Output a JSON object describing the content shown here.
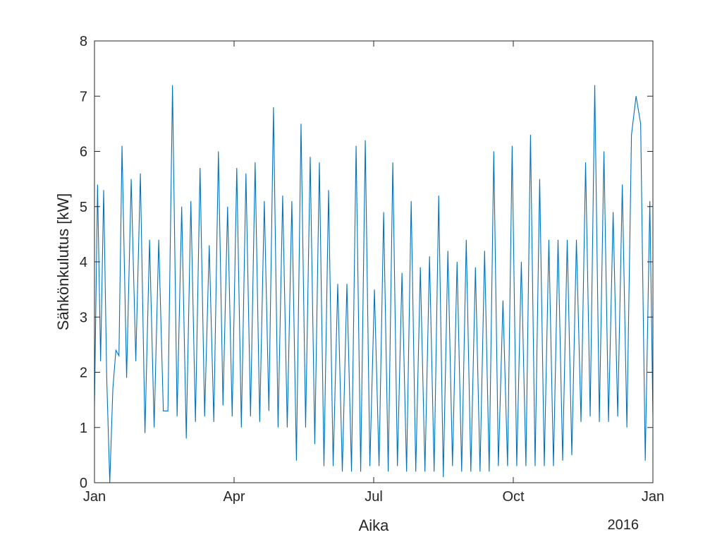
{
  "chart_data": {
    "type": "line",
    "title": "",
    "xlabel": "Aika",
    "ylabel": "Sähkönkulutus [kW]",
    "x_tick_labels": [
      "Jan",
      "Apr",
      "Jul",
      "Oct",
      "Jan"
    ],
    "x_secondary_label": "2016",
    "y_tick_labels": [
      "0",
      "1",
      "2",
      "3",
      "4",
      "5",
      "6",
      "7",
      "8"
    ],
    "xlim": [
      "2015-01-01",
      "2016-01-01"
    ],
    "ylim": [
      0,
      8
    ],
    "grid": false,
    "line_color": "#0072BD",
    "series": [
      {
        "name": "",
        "x": [
          "2015-01-01",
          "2015-01-03",
          "2015-01-05",
          "2015-01-07",
          "2015-01-09",
          "2015-01-11",
          "2015-01-13",
          "2015-01-15",
          "2015-01-17",
          "2015-01-19",
          "2015-01-22",
          "2015-01-25",
          "2015-01-28",
          "2015-01-31",
          "2015-02-03",
          "2015-02-06",
          "2015-02-09",
          "2015-02-12",
          "2015-02-15",
          "2015-02-18",
          "2015-02-21",
          "2015-02-24",
          "2015-02-27",
          "2015-03-02",
          "2015-03-05",
          "2015-03-08",
          "2015-03-11",
          "2015-03-14",
          "2015-03-17",
          "2015-03-20",
          "2015-03-23",
          "2015-03-26",
          "2015-03-29",
          "2015-04-01",
          "2015-04-04",
          "2015-04-07",
          "2015-04-10",
          "2015-04-13",
          "2015-04-16",
          "2015-04-19",
          "2015-04-22",
          "2015-04-25",
          "2015-04-28",
          "2015-05-01",
          "2015-05-04",
          "2015-05-07",
          "2015-05-10",
          "2015-05-13",
          "2015-05-16",
          "2015-05-19",
          "2015-05-22",
          "2015-05-25",
          "2015-05-28",
          "2015-05-31",
          "2015-06-03",
          "2015-06-06",
          "2015-06-09",
          "2015-06-12",
          "2015-06-15",
          "2015-06-18",
          "2015-06-21",
          "2015-06-24",
          "2015-06-27",
          "2015-06-30",
          "2015-07-03",
          "2015-07-06",
          "2015-07-09",
          "2015-07-12",
          "2015-07-15",
          "2015-07-18",
          "2015-07-21",
          "2015-07-24",
          "2015-07-27",
          "2015-07-30",
          "2015-08-02",
          "2015-08-05",
          "2015-08-08",
          "2015-08-11",
          "2015-08-14",
          "2015-08-17",
          "2015-08-20",
          "2015-08-23",
          "2015-08-26",
          "2015-08-29",
          "2015-09-01",
          "2015-09-04",
          "2015-09-07",
          "2015-09-10",
          "2015-09-13",
          "2015-09-16",
          "2015-09-19",
          "2015-09-22",
          "2015-09-25",
          "2015-09-28",
          "2015-10-01",
          "2015-10-04",
          "2015-10-07",
          "2015-10-10",
          "2015-10-13",
          "2015-10-16",
          "2015-10-19",
          "2015-10-22",
          "2015-10-25",
          "2015-10-28",
          "2015-10-31",
          "2015-11-03",
          "2015-11-06",
          "2015-11-09",
          "2015-11-12",
          "2015-11-15",
          "2015-11-18",
          "2015-11-21",
          "2015-11-24",
          "2015-11-27",
          "2015-11-30",
          "2015-12-03",
          "2015-12-06",
          "2015-12-09",
          "2015-12-12",
          "2015-12-15",
          "2015-12-18",
          "2015-12-21",
          "2015-12-24",
          "2015-12-27",
          "2015-12-30",
          "2016-01-01"
        ],
        "y": [
          1.4,
          5.4,
          2.2,
          5.3,
          1.9,
          0.0,
          1.7,
          2.4,
          2.3,
          6.1,
          1.9,
          5.5,
          2.2,
          5.6,
          0.9,
          4.4,
          1.0,
          4.4,
          1.3,
          1.3,
          7.2,
          1.2,
          5.0,
          0.8,
          5.1,
          1.1,
          5.7,
          1.2,
          4.3,
          1.1,
          6.0,
          1.4,
          5.0,
          1.2,
          5.7,
          1.0,
          5.6,
          1.2,
          5.8,
          1.1,
          5.1,
          1.3,
          6.8,
          1.0,
          5.2,
          1.0,
          5.1,
          0.4,
          6.5,
          1.0,
          5.9,
          0.7,
          5.8,
          0.3,
          5.3,
          0.3,
          3.6,
          0.2,
          3.6,
          0.2,
          6.1,
          0.2,
          6.2,
          0.3,
          3.5,
          0.3,
          4.9,
          0.2,
          5.8,
          0.3,
          3.8,
          0.2,
          5.1,
          0.2,
          3.9,
          0.2,
          4.1,
          0.2,
          5.2,
          0.1,
          4.2,
          0.3,
          4.0,
          0.2,
          4.4,
          0.2,
          3.9,
          0.2,
          4.2,
          0.2,
          6.0,
          0.3,
          3.3,
          0.3,
          6.1,
          0.3,
          4.0,
          0.3,
          6.3,
          0.3,
          5.5,
          0.3,
          4.4,
          0.3,
          4.4,
          0.4,
          4.4,
          0.5,
          4.4,
          1.1,
          5.8,
          1.2,
          7.2,
          1.1,
          6.0,
          1.1,
          4.9,
          1.2,
          5.4,
          1.0,
          6.3,
          7.0,
          6.5,
          0.4,
          5.1,
          1.2
        ]
      }
    ]
  }
}
